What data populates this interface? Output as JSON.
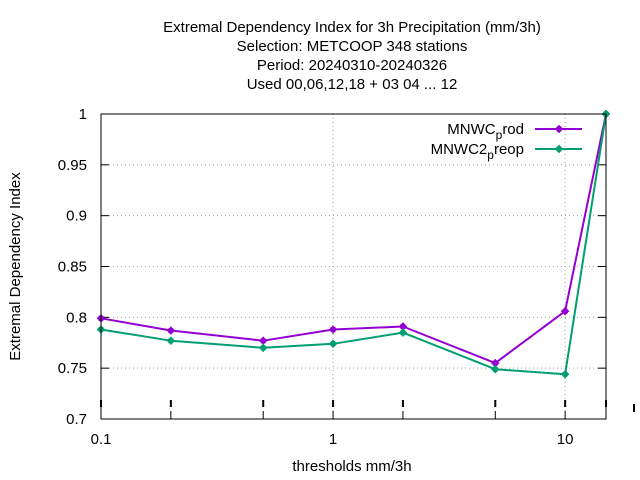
{
  "chart_data": {
    "type": "line",
    "title_lines": [
      "Extremal Dependency Index  for 3h Precipitation (mm/3h)",
      "Selection: METCOOP    348 stations",
      "Period: 20240310-20240326",
      "Used  00,06,12,18 + 03 04 ... 12"
    ],
    "xlabel": "thresholds mm/3h",
    "ylabel": "Extremal Dependency Index",
    "xscale": "log",
    "xlim": [
      0.1,
      15
    ],
    "ylim": [
      0.7,
      1.0
    ],
    "x_ticks": [
      {
        "value": 0.1,
        "label": "0.1"
      },
      {
        "value": 1,
        "label": "1"
      },
      {
        "value": 10,
        "label": "10"
      }
    ],
    "x_major_ticks": [
      0.1,
      0.2,
      0.5,
      1,
      2,
      5,
      10,
      15
    ],
    "y_ticks": [
      {
        "value": 0.7,
        "label": "0.7"
      },
      {
        "value": 0.75,
        "label": "0.75"
      },
      {
        "value": 0.8,
        "label": "0.8"
      },
      {
        "value": 0.85,
        "label": "0.85"
      },
      {
        "value": 0.9,
        "label": "0.9"
      },
      {
        "value": 0.95,
        "label": "0.95"
      },
      {
        "value": 1.0,
        "label": "1"
      }
    ],
    "grid": true,
    "legend_position": "top-right",
    "x": [
      0.1,
      0.2,
      0.5,
      1,
      2,
      5,
      10,
      15
    ],
    "series": [
      {
        "legend_main": "MNWC",
        "legend_sub": "p",
        "legend_tail": "rod",
        "color": "#9400d3",
        "values": [
          0.799,
          0.787,
          0.777,
          0.788,
          0.791,
          0.755,
          0.806,
          1.0
        ]
      },
      {
        "legend_main": "MNWC2",
        "legend_sub": "p",
        "legend_tail": "reop",
        "color": "#009e73",
        "values": [
          0.788,
          0.777,
          0.77,
          0.774,
          0.785,
          0.749,
          0.744,
          1.0
        ]
      }
    ]
  }
}
